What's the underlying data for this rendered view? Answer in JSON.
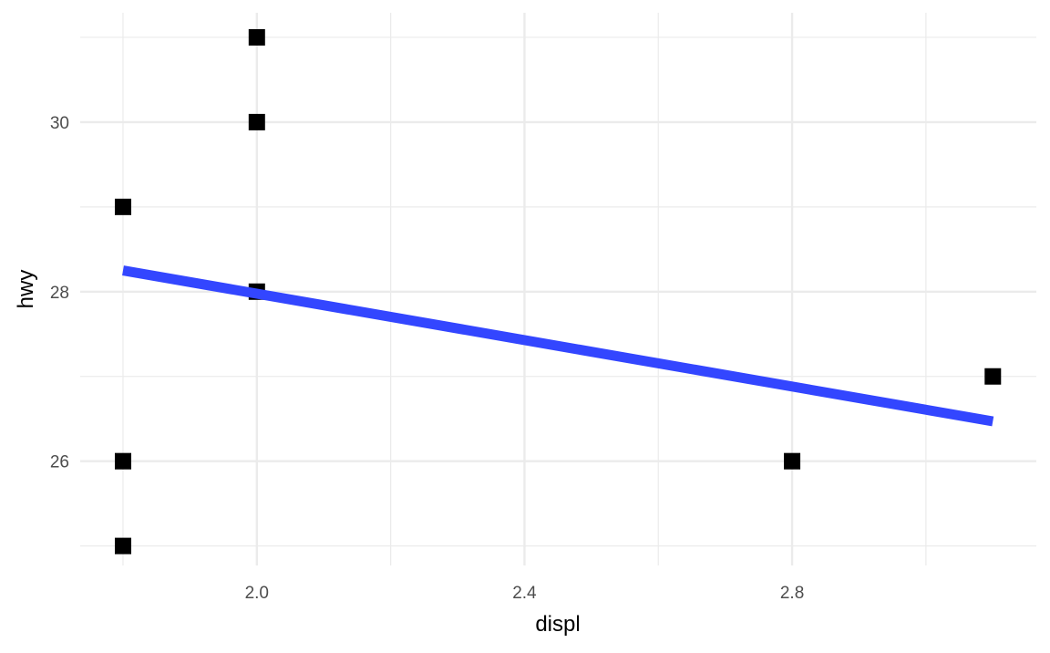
{
  "chart_data": {
    "type": "scatter",
    "title": "",
    "xlabel": "displ",
    "ylabel": "hwy",
    "xlim": [
      1.736,
      3.165
    ],
    "ylim": [
      24.77,
      31.29
    ],
    "x_ticks": [
      2.0,
      2.4,
      2.8
    ],
    "x_tick_labels": [
      "2.0",
      "2.4",
      "2.8"
    ],
    "x_minor": [
      1.8,
      2.2,
      2.6,
      3.0
    ],
    "y_ticks": [
      26,
      28,
      30
    ],
    "y_tick_labels": [
      "26",
      "28",
      "30"
    ],
    "y_minor": [
      25,
      27,
      29,
      31
    ],
    "grid": true,
    "legend": "none",
    "points": [
      {
        "x": 1.8,
        "y": 29
      },
      {
        "x": 1.8,
        "y": 26
      },
      {
        "x": 1.8,
        "y": 25
      },
      {
        "x": 2.0,
        "y": 31
      },
      {
        "x": 2.0,
        "y": 30
      },
      {
        "x": 2.0,
        "y": 28
      },
      {
        "x": 2.8,
        "y": 26
      },
      {
        "x": 3.1,
        "y": 27
      }
    ],
    "point_shape": "square",
    "point_color": "#000000",
    "trend_line": {
      "x": [
        1.8,
        3.1
      ],
      "y": [
        28.25,
        26.47
      ],
      "color": "#3346FF"
    },
    "grid_color": "#EBEBEB"
  }
}
